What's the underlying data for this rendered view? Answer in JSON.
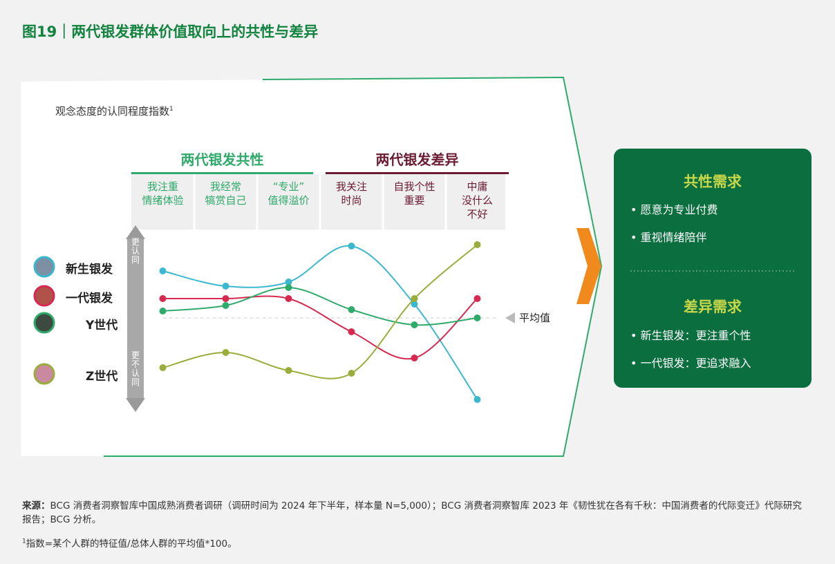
{
  "chart_data": {
    "type": "line",
    "title": "图19｜两代银发群体价值取向上的共性与差异",
    "y_axis_label": "观念态度的认同程度指数",
    "y_axis_label_note": "1",
    "axis_top_label": "更认同",
    "axis_bottom_label": "更不认同",
    "groups": [
      {
        "label": "两代银发共性",
        "color": "#2eaa6a",
        "span": 3
      },
      {
        "label": "两代银发差异",
        "color": "#6b1a32",
        "span": 3
      }
    ],
    "categories": [
      "我注重\n情绪体验",
      "我经常\n犒赏自己",
      "“专业”\n值得溢价",
      "我关注\n时尚",
      "自我个性\n重要",
      "中庸\n没什么\n不好"
    ],
    "series": [
      {
        "name": "新生银发",
        "color": "#3bb8d0",
        "values": [
          134,
          123,
          126,
          152,
          110,
          41
        ]
      },
      {
        "name": "一代银发",
        "color": "#d6294f",
        "values": [
          114,
          114,
          114,
          90,
          71,
          114
        ]
      },
      {
        "name": "Y世代",
        "color": "#2eaa6a",
        "values": [
          105,
          109,
          122,
          106,
          95,
          100
        ]
      },
      {
        "name": "Z世代",
        "color": "#9aad3a",
        "values": [
          64,
          75,
          62,
          60,
          114,
          153
        ]
      }
    ],
    "ylim": [
      30,
      165
    ],
    "reference_line": {
      "value": 100,
      "label": "平均值"
    },
    "summary": [
      {
        "heading": "共性需求",
        "items": [
          "愿意为专业付费",
          "重视情绪陪伴"
        ]
      },
      {
        "heading": "差异需求",
        "items": [
          "新生银发：更注重个性",
          "一代银发：更追求融入"
        ]
      }
    ],
    "source_label": "来源：",
    "source": "BCG 消费者洞察智库中国成熟消费者调研（调研时间为 2024 年下半年，样本量 N=5,000）；BCG 消费者洞察智库 2023 年《韧性犹在各有千秋：中国消费者的代际变迁》代际研究报告；BCG 分析。",
    "footnote_mark": "1",
    "footnote": "指数=某个人群的特征值/总体人群的平均值*100。"
  }
}
